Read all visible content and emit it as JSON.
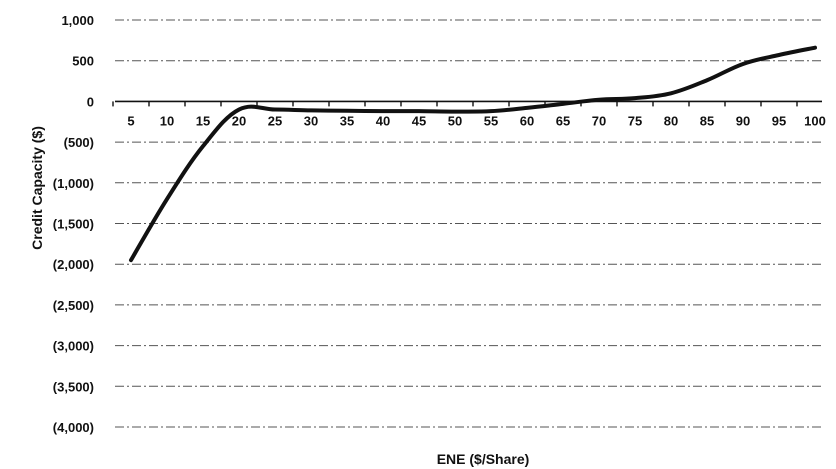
{
  "chart_data": {
    "type": "line",
    "title": "",
    "xlabel": "ENE ($/Share)",
    "ylabel": "Credit Capacity ($)",
    "ylim": [
      -4000,
      1000
    ],
    "yticks": [
      1000,
      500,
      0,
      -500,
      -1000,
      -1500,
      -2000,
      -2500,
      -3000,
      -3500,
      -4000
    ],
    "ytick_labels": [
      "1,000",
      "500",
      "0",
      "(500)",
      "(1,000)",
      "(1,500)",
      "(2,000)",
      "(2,500)",
      "(3,000)",
      "(3,500)",
      "(4,000)"
    ],
    "categories": [
      "5",
      "10",
      "15",
      "20",
      "25",
      "30",
      "35",
      "40",
      "45",
      "50",
      "55",
      "60",
      "65",
      "70",
      "75",
      "80",
      "85",
      "90",
      "95",
      "100"
    ],
    "grid": true,
    "legend": "none",
    "line_color": "#111111",
    "grid_color": "#555555",
    "series": [
      {
        "values": [
          -1950,
          -1200,
          -550,
          -100,
          -100,
          -110,
          -115,
          -120,
          -120,
          -125,
          -120,
          -80,
          -30,
          20,
          40,
          100,
          260,
          460,
          570,
          660
        ]
      }
    ]
  }
}
